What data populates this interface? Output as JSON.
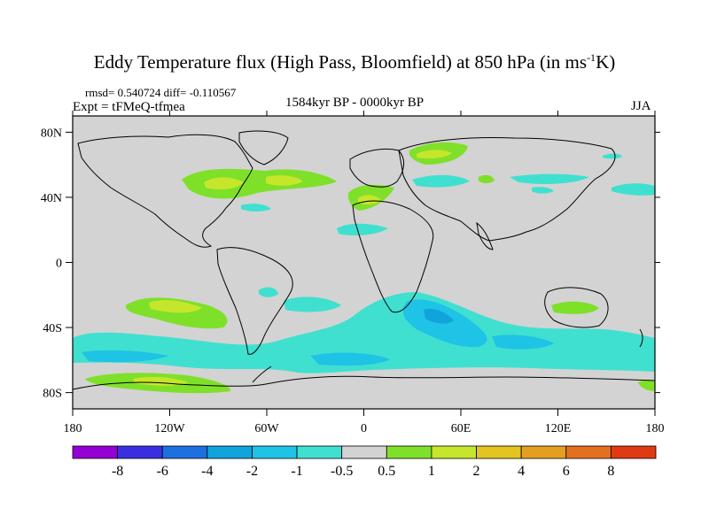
{
  "title_main": "Eddy Temperature flux (High Pass, Bloomfield) at 850 hPa (in ms",
  "title_sup": "-1",
  "title_end": "K)",
  "stats": "rmsd= 0.540724 diff= -0.110567",
  "expt": "Expt = tFMeQ-tfmea",
  "period": "1584kyr BP - 0000kyr BP",
  "season": "JJA",
  "lat_ticks": [
    "80N",
    "40N",
    "0",
    "40S",
    "80S"
  ],
  "lon_ticks": [
    "180",
    "120W",
    "60W",
    "0",
    "60E",
    "120E",
    "180"
  ],
  "colorbar": {
    "labels": [
      "-8",
      "-6",
      "-4",
      "-2",
      "-1",
      "-0.5",
      "0.5",
      "1",
      "2",
      "4",
      "6",
      "8"
    ],
    "colors": [
      "#9400d3",
      "#3a2fe0",
      "#1e6fe0",
      "#10a3dc",
      "#1ec3e6",
      "#40e0d0",
      "#d3d3d3",
      "#7fe02a",
      "#c6e62c",
      "#e3c420",
      "#e3a020",
      "#e37020",
      "#e03a14"
    ]
  },
  "map_colors": {
    "background": "#d3d3d3",
    "light_pos": "#7fe02a",
    "mid_pos": "#c6e62c",
    "light_neg": "#40e0d0",
    "mid_neg": "#1ec3e6",
    "strong_neg": "#10a3dc",
    "coast": "#000000"
  }
}
